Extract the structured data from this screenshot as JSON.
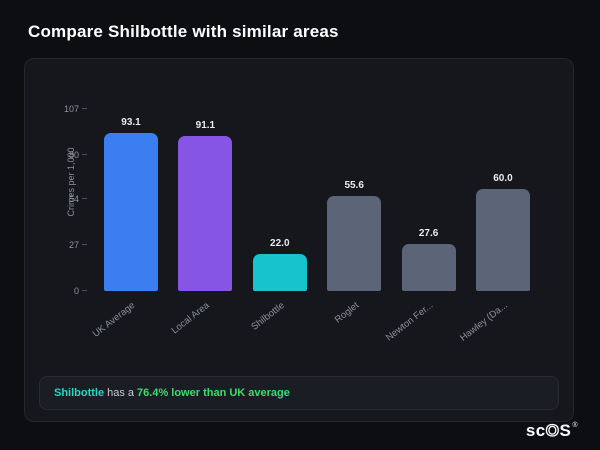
{
  "page": {
    "title": "Compare Shilbottle with similar areas"
  },
  "chart_data": {
    "type": "bar",
    "title": "",
    "categories": [
      "UK Average",
      "Local Area",
      "Shilbottle",
      "Roglet",
      "Newton Fer...",
      "Hawley (Da..."
    ],
    "values": [
      93.1,
      91.1,
      22.0,
      55.6,
      27.6,
      60.0
    ],
    "bar_colors": [
      "#3b7ef2",
      "#8655e6",
      "#17c3cd",
      "#5b6577",
      "#5b6577",
      "#5b6577"
    ],
    "xlabel": "",
    "ylabel": "Crimes per 1,000",
    "yticks": [
      0,
      27,
      54,
      80,
      107
    ],
    "ylim": [
      0,
      107
    ],
    "grid": false,
    "legend": "none",
    "value_label_decimals": 1
  },
  "note": {
    "area": "Shilbottle",
    "middle": "has a",
    "highlight": "76.4% lower than UK average"
  },
  "logo": {
    "prefix": "sc",
    "o": "O",
    "suffix": "S",
    "reg": "®"
  }
}
